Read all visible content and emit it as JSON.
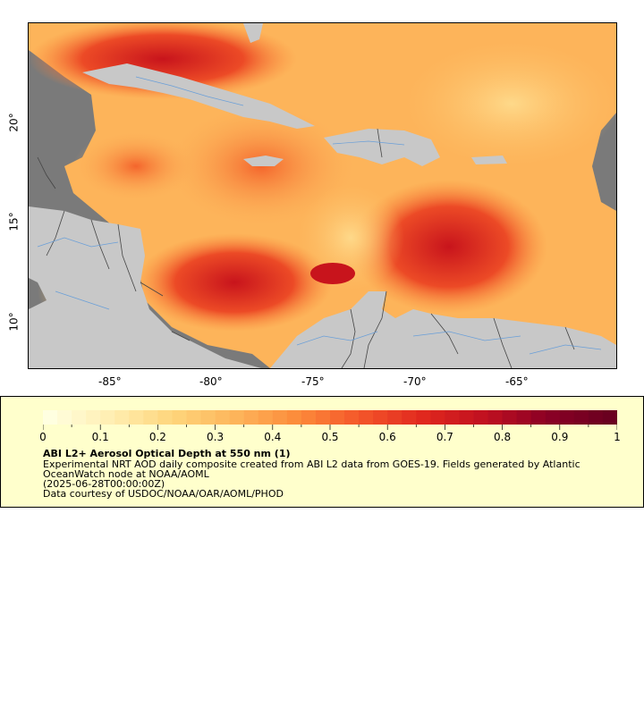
{
  "map": {
    "x_ticks": [
      "-85°",
      "-80°",
      "-75°",
      "-70°",
      "-65°"
    ],
    "y_ticks": [
      "20°",
      "15°",
      "10°"
    ],
    "colors": {
      "no_data": "#7a7a7a",
      "land": "#c8c8c8",
      "rivers": "#6a9fd8",
      "borders": "#444444"
    }
  },
  "legend": {
    "colorbar_ticks": [
      "0",
      "0.1",
      "0.2",
      "0.3",
      "0.4",
      "0.5",
      "0.6",
      "0.7",
      "0.8",
      "0.9",
      "1"
    ],
    "colorbar_range": [
      0,
      1
    ],
    "colorbar_colors": [
      "#ffffe0",
      "#ffeeb0",
      "#fed47a",
      "#fdb45a",
      "#fc8a3a",
      "#f4552a",
      "#e0281e",
      "#c01020",
      "#8a0025",
      "#6a0020"
    ],
    "title": "ABI L2+ Aerosol Optical Depth at 550 nm (1)",
    "description": "Experimental NRT AOD daily composite created from ABI L2 data from GOES-19. Fields generated by Atlantic OceanWatch node at NOAA/AOML",
    "timestamp": "(2025-06-28T00:00:00Z)",
    "credit": "Data courtesy of USDOC/NOAA/OAR/AOML/PHOD"
  }
}
